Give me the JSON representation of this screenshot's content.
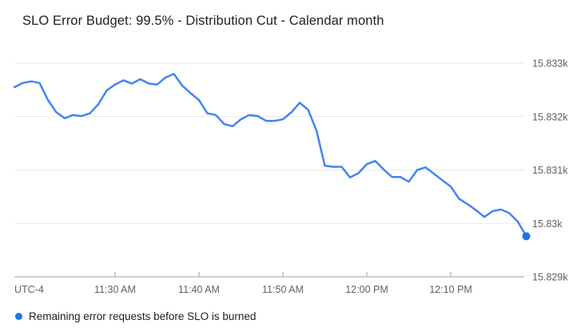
{
  "chart": {
    "title": "SLO Error Budget: 99.5% - Distribution Cut - Calendar month"
  },
  "colors": {
    "background": "#ffffff",
    "line": "#4285f4",
    "end_marker": "#1a73e8",
    "legend_dot": "#1a73e8",
    "gridline": "#e8e8e8",
    "axis_line": "#9e9e9e",
    "tick": "#9e9e9e",
    "axis_label": "#616161",
    "title_text": "#212121",
    "legend_text": "#212121"
  },
  "chart_data": {
    "type": "line",
    "title": "SLO Error Budget: 99.5% - Distribution Cut - Calendar month",
    "timezone": "UTC-4",
    "grid": "horizontal",
    "legend_position": "bottom-left",
    "x_ticks": [
      "11:30 AM",
      "11:40 AM",
      "11:50 AM",
      "12:00 PM",
      "12:10 PM"
    ],
    "y_ticks": [
      {
        "label": "15.833k",
        "value": 15833
      },
      {
        "label": "15.832k",
        "value": 15832
      },
      {
        "label": "15.831k",
        "value": 15831
      },
      {
        "label": "15.83k",
        "value": 15830
      },
      {
        "label": "15.829k",
        "value": 15829
      }
    ],
    "ylim": [
      15828.9,
      15833.3
    ],
    "series": [
      {
        "name": "Remaining error requests before SLO is burned",
        "color": "#4285f4",
        "end_marker": true,
        "times": [
          "11:18 AM",
          "11:19 AM",
          "11:20 AM",
          "11:21 AM",
          "11:22 AM",
          "11:23 AM",
          "11:24 AM",
          "11:25 AM",
          "11:26 AM",
          "11:27 AM",
          "11:28 AM",
          "11:29 AM",
          "11:30 AM",
          "11:31 AM",
          "11:32 AM",
          "11:33 AM",
          "11:34 AM",
          "11:35 AM",
          "11:36 AM",
          "11:37 AM",
          "11:38 AM",
          "11:39 AM",
          "11:40 AM",
          "11:41 AM",
          "11:42 AM",
          "11:43 AM",
          "11:44 AM",
          "11:45 AM",
          "11:46 AM",
          "11:47 AM",
          "11:48 AM",
          "11:49 AM",
          "11:50 AM",
          "11:51 AM",
          "11:52 AM",
          "11:53 AM",
          "11:54 AM",
          "11:55 AM",
          "11:56 AM",
          "11:57 AM",
          "11:58 AM",
          "11:59 AM",
          "12:00 PM",
          "12:01 PM",
          "12:02 PM",
          "12:03 PM",
          "12:04 PM",
          "12:05 PM",
          "12:06 PM",
          "12:07 PM",
          "12:08 PM",
          "12:09 PM",
          "12:10 PM",
          "12:11 PM",
          "12:12 PM",
          "12:13 PM",
          "12:14 PM",
          "12:15 PM",
          "12:16 PM",
          "12:17 PM",
          "12:18 PM",
          "12:19 PM"
        ],
        "values": [
          15832.55,
          15832.63,
          15832.66,
          15832.63,
          15832.31,
          15832.08,
          15831.97,
          15832.03,
          15832.01,
          15832.06,
          15832.23,
          15832.49,
          15832.6,
          15832.68,
          15832.62,
          15832.7,
          15832.62,
          15832.6,
          15832.73,
          15832.8,
          15832.58,
          15832.44,
          15832.31,
          15832.06,
          15832.03,
          15831.86,
          15831.82,
          15831.95,
          15832.03,
          15832.01,
          15831.92,
          15831.92,
          15831.95,
          15832.08,
          15832.26,
          15832.13,
          15831.74,
          15831.08,
          15831.06,
          15831.06,
          15830.86,
          15830.94,
          15831.11,
          15831.17,
          15831.01,
          15830.87,
          15830.87,
          15830.78,
          15831.0,
          15831.05,
          15830.93,
          15830.81,
          15830.69,
          15830.46,
          15830.36,
          15830.25,
          15830.12,
          15830.23,
          15830.26,
          15830.19,
          15830.03,
          15829.76
        ]
      }
    ]
  }
}
